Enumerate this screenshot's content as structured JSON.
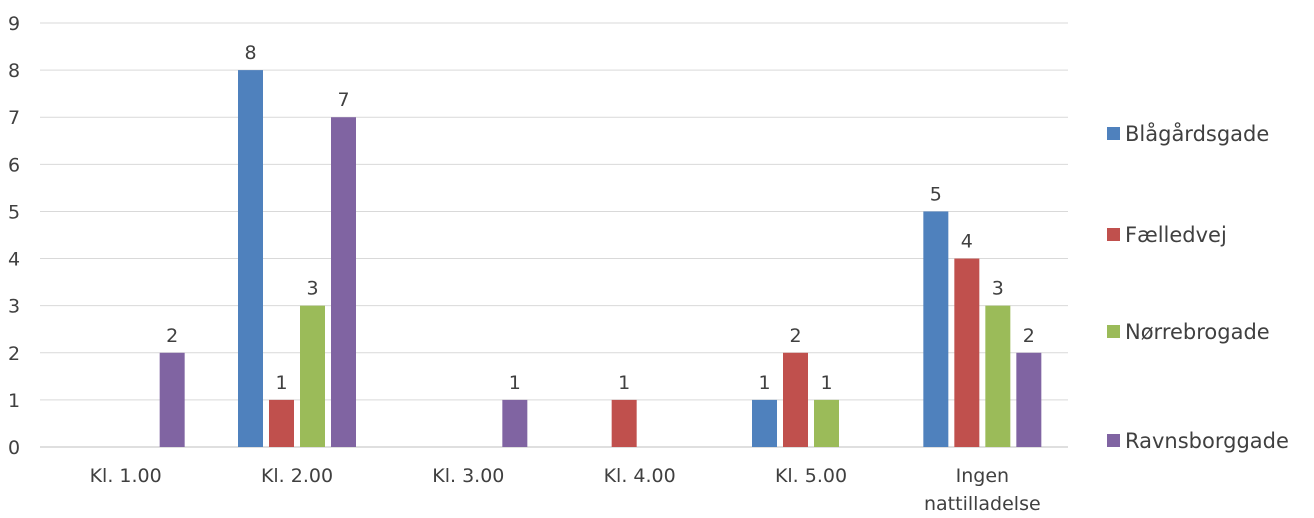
{
  "chart_data": {
    "type": "bar",
    "categories": [
      [
        "Kl. 1.00"
      ],
      [
        "Kl. 2.00"
      ],
      [
        "Kl. 3.00"
      ],
      [
        "Kl. 4.00"
      ],
      [
        "Kl. 5.00"
      ],
      [
        "Ingen",
        "nattilladelse"
      ]
    ],
    "series": [
      {
        "name": "Blågårdsgade",
        "color": "#4F81BD",
        "values": [
          0,
          8,
          0,
          0,
          1,
          5
        ]
      },
      {
        "name": "Fælledvej",
        "color": "#C0504D",
        "values": [
          0,
          1,
          0,
          1,
          2,
          4
        ]
      },
      {
        "name": "Nørrebrogade",
        "color": "#9BBB59",
        "values": [
          0,
          3,
          0,
          0,
          1,
          3
        ]
      },
      {
        "name": "Ravnsborggade",
        "color": "#8064A2",
        "values": [
          2,
          7,
          1,
          0,
          0,
          2
        ]
      }
    ],
    "ylim": [
      0,
      9
    ],
    "yticks": [
      0,
      1,
      2,
      3,
      4,
      5,
      6,
      7,
      8,
      9
    ],
    "grid": true,
    "legend_position": "right",
    "data_labels": true,
    "title": "",
    "xlabel": "",
    "ylabel": ""
  }
}
